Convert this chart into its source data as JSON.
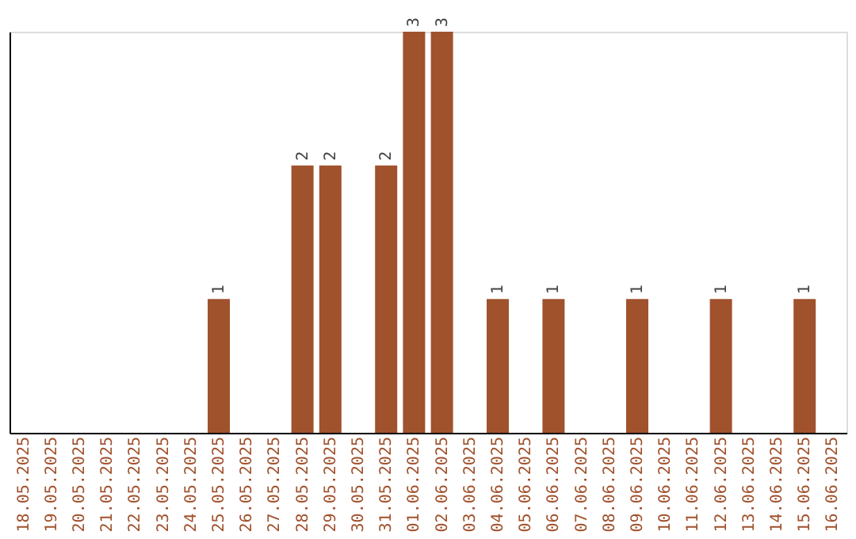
{
  "chart_data": {
    "type": "bar",
    "categories": [
      "18.05.2025",
      "19.05.2025",
      "20.05.2025",
      "21.05.2025",
      "22.05.2025",
      "23.05.2025",
      "24.05.2025",
      "25.05.2025",
      "26.05.2025",
      "27.05.2025",
      "28.05.2025",
      "29.05.2025",
      "30.05.2025",
      "31.05.2025",
      "01.06.2025",
      "02.06.2025",
      "03.06.2025",
      "04.06.2025",
      "05.06.2025",
      "06.06.2025",
      "07.06.2025",
      "08.06.2025",
      "09.06.2025",
      "10.06.2025",
      "11.06.2025",
      "12.06.2025",
      "13.06.2025",
      "14.06.2025",
      "15.06.2025",
      "16.06.2025"
    ],
    "values": [
      0,
      0,
      0,
      0,
      0,
      0,
      0,
      1,
      0,
      0,
      2,
      2,
      0,
      2,
      3,
      3,
      0,
      1,
      0,
      1,
      0,
      0,
      1,
      0,
      0,
      1,
      0,
      0,
      1,
      0
    ],
    "value_labels": [
      null,
      null,
      null,
      null,
      null,
      null,
      null,
      "1",
      null,
      null,
      "2",
      "2",
      null,
      "2",
      "3",
      "3",
      null,
      "1",
      null,
      "1",
      null,
      null,
      "1",
      null,
      null,
      "1",
      null,
      null,
      "1",
      null
    ],
    "color": "#a0522d",
    "tick_labels": "x",
    "grid": false
  }
}
